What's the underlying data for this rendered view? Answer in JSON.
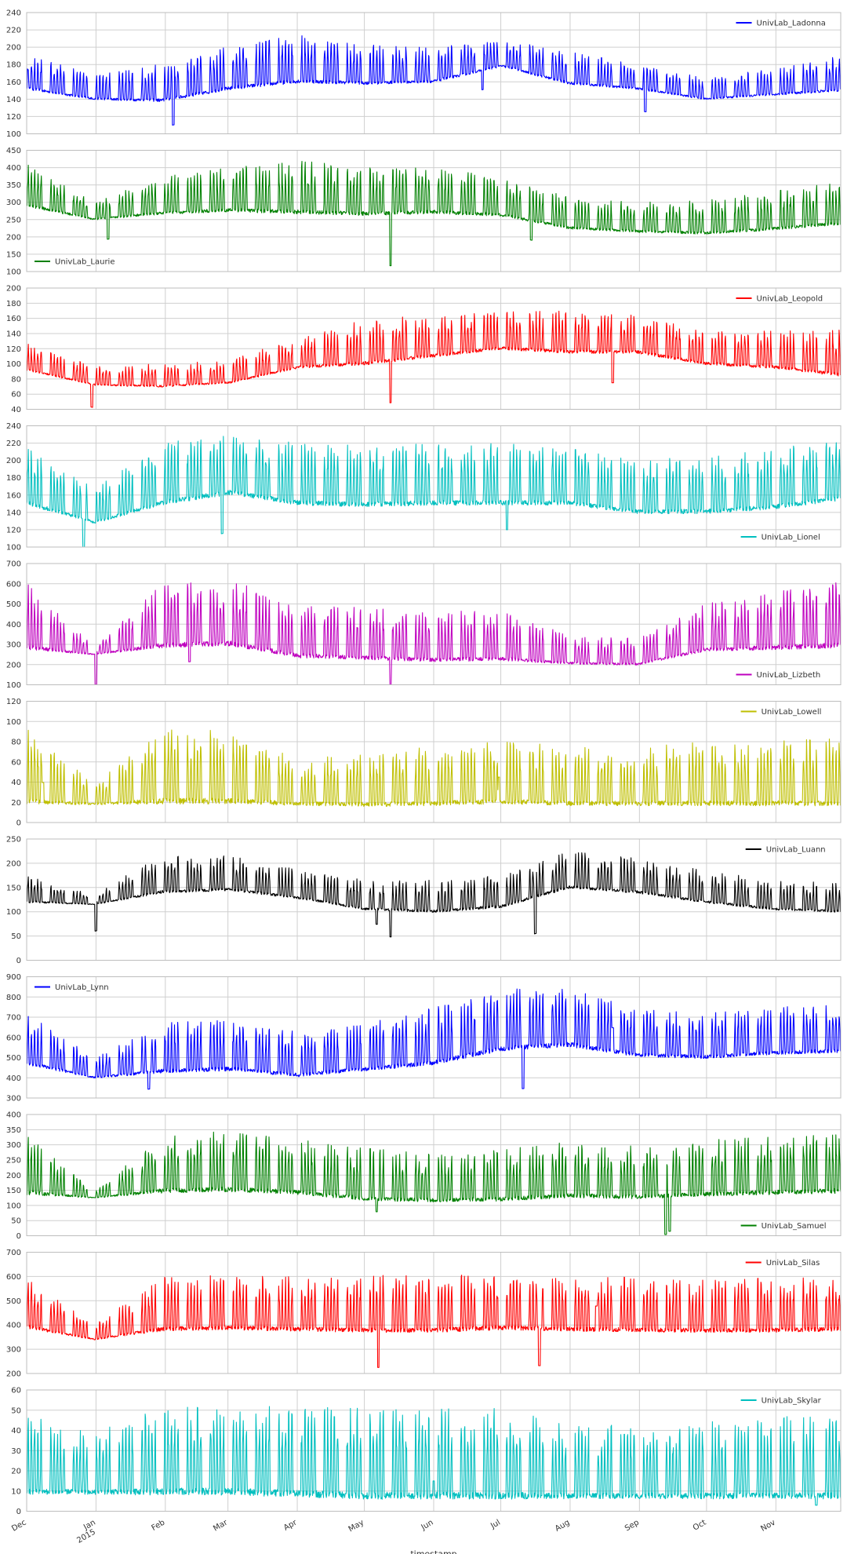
{
  "chart_data": [
    {
      "type": "line",
      "series": [
        {
          "name": "UnivLab_Ladonna",
          "color": "#0000ff"
        }
      ],
      "ylim": [
        100,
        240
      ],
      "yticks": [
        "100",
        "120",
        "140",
        "160",
        "180",
        "200",
        "220",
        "240"
      ],
      "legend": "top-right",
      "profile": {
        "base": [
          152,
          140,
          138,
          152,
          160,
          158,
          160,
          178,
          158,
          152,
          140,
          145,
          150
        ],
        "amp": [
          40,
          28,
          45,
          50,
          55,
          45,
          40,
          30,
          38,
          28,
          25,
          30,
          40
        ],
        "spikes": [
          [
            0.18,
            -30
          ],
          [
            0.56,
            -22
          ],
          [
            0.76,
            -25
          ]
        ]
      }
    },
    {
      "type": "line",
      "series": [
        {
          "name": "UnivLab_Laurie",
          "color": "#008000"
        }
      ],
      "ylim": [
        100,
        450
      ],
      "yticks": [
        "100",
        "150",
        "200",
        "250",
        "300",
        "350",
        "400",
        "450"
      ],
      "legend": "bottom-left",
      "profile": {
        "base": [
          290,
          250,
          268,
          275,
          270,
          265,
          270,
          262,
          225,
          215,
          210,
          222,
          238
        ],
        "amp": [
          120,
          50,
          110,
          130,
          150,
          140,
          130,
          110,
          90,
          85,
          95,
          110,
          120
        ],
        "spikes": [
          [
            0.447,
            -150
          ],
          [
            0.1,
            -60
          ],
          [
            0.62,
            -55
          ]
        ]
      }
    },
    {
      "type": "line",
      "series": [
        {
          "name": "UnivLab_Leopold",
          "color": "#ff0000"
        }
      ],
      "ylim": [
        40,
        200
      ],
      "yticks": [
        "40",
        "60",
        "80",
        "100",
        "120",
        "140",
        "160",
        "180",
        "200"
      ],
      "legend": "top-right",
      "profile": {
        "base": [
          92,
          72,
          70,
          75,
          95,
          100,
          110,
          120,
          115,
          115,
          100,
          95,
          85
        ],
        "amp": [
          35,
          25,
          30,
          30,
          40,
          60,
          55,
          50,
          55,
          50,
          45,
          50,
          60
        ],
        "spikes": [
          [
            0.447,
            -55
          ],
          [
            0.08,
            -30
          ],
          [
            0.72,
            -40
          ]
        ]
      }
    },
    {
      "type": "line",
      "series": [
        {
          "name": "UnivLab_Lionel",
          "color": "#00bfbf"
        }
      ],
      "ylim": [
        100,
        240
      ],
      "yticks": [
        "100",
        "120",
        "140",
        "160",
        "180",
        "200",
        "220",
        "240"
      ],
      "legend": "bottom-right",
      "profile": {
        "base": [
          150,
          128,
          150,
          162,
          150,
          148,
          150,
          150,
          150,
          140,
          140,
          145,
          155
        ],
        "amp": [
          65,
          40,
          70,
          70,
          70,
          70,
          70,
          70,
          65,
          60,
          65,
          70,
          70
        ],
        "spikes": [
          [
            0.07,
            -50
          ],
          [
            0.24,
            -45
          ],
          [
            0.59,
            -30
          ]
        ]
      }
    },
    {
      "type": "line",
      "series": [
        {
          "name": "UnivLab_Lizbeth",
          "color": "#bf00bf"
        }
      ],
      "ylim": [
        100,
        700
      ],
      "yticks": [
        "100",
        "200",
        "300",
        "400",
        "500",
        "600",
        "700"
      ],
      "legend": "bottom-right",
      "profile": {
        "base": [
          280,
          250,
          290,
          300,
          240,
          230,
          220,
          225,
          205,
          200,
          270,
          280,
          290
        ],
        "amp": [
          330,
          40,
          310,
          320,
          260,
          250,
          250,
          240,
          140,
          130,
          230,
          280,
          320
        ],
        "spikes": [
          [
            0.085,
            -150
          ],
          [
            0.447,
            -130
          ],
          [
            0.2,
            -80
          ]
        ]
      }
    },
    {
      "type": "line",
      "series": [
        {
          "name": "UnivLab_Lowell",
          "color": "#bfbf00"
        }
      ],
      "ylim": [
        0,
        120
      ],
      "yticks": [
        "0",
        "20",
        "40",
        "60",
        "80",
        "100",
        "120"
      ],
      "legend": "top-right",
      "profile": {
        "base": [
          20,
          18,
          20,
          20,
          18,
          17,
          18,
          20,
          18,
          18,
          18,
          18,
          18
        ],
        "amp": [
          75,
          20,
          75,
          72,
          45,
          55,
          58,
          60,
          58,
          58,
          62,
          65,
          65
        ],
        "spikes": [
          [
            0.58,
            25
          ],
          [
            0.02,
            20
          ]
        ]
      }
    },
    {
      "type": "line",
      "series": [
        {
          "name": "UnivLab_Luann",
          "color": "#000000"
        }
      ],
      "ylim": [
        0,
        250
      ],
      "yticks": [
        "0",
        "50",
        "100",
        "150",
        "200",
        "250"
      ],
      "legend": "top-right",
      "profile": {
        "base": [
          120,
          115,
          140,
          145,
          128,
          105,
          100,
          110,
          150,
          140,
          120,
          105,
          100
        ],
        "amp": [
          55,
          20,
          80,
          70,
          60,
          60,
          65,
          70,
          75,
          70,
          65,
          60,
          60
        ],
        "spikes": [
          [
            0.085,
            -55
          ],
          [
            0.447,
            -55
          ],
          [
            0.625,
            -75
          ],
          [
            0.43,
            -30
          ]
        ]
      }
    },
    {
      "type": "line",
      "series": [
        {
          "name": "UnivLab_Lynn",
          "color": "#0000ff"
        }
      ],
      "ylim": [
        300,
        900
      ],
      "yticks": [
        "300",
        "400",
        "500",
        "600",
        "700",
        "800",
        "900"
      ],
      "legend": "top-left",
      "profile": {
        "base": [
          470,
          400,
          430,
          440,
          410,
          440,
          470,
          540,
          560,
          510,
          500,
          520,
          530
        ],
        "amp": [
          250,
          100,
          250,
          250,
          220,
          230,
          280,
          300,
          300,
          230,
          220,
          230,
          230
        ],
        "spikes": [
          [
            0.61,
            -200
          ],
          [
            0.15,
            -80
          ],
          [
            0.72,
            120
          ]
        ]
      }
    },
    {
      "type": "line",
      "series": [
        {
          "name": "UnivLab_Samuel",
          "color": "#008000"
        }
      ],
      "ylim": [
        0,
        400
      ],
      "yticks": [
        "0",
        "50",
        "100",
        "150",
        "200",
        "250",
        "300",
        "350",
        "400"
      ],
      "legend": "bottom-right",
      "profile": {
        "base": [
          140,
          125,
          145,
          150,
          140,
          120,
          115,
          118,
          130,
          125,
          135,
          140,
          145
        ],
        "amp": [
          200,
          20,
          190,
          200,
          180,
          170,
          160,
          170,
          180,
          170,
          180,
          190,
          200
        ],
        "spikes": [
          [
            0.785,
            -125
          ],
          [
            0.79,
            -115
          ],
          [
            0.43,
            -40
          ]
        ]
      }
    },
    {
      "type": "line",
      "series": [
        {
          "name": "UnivLab_Silas",
          "color": "#ff0000"
        }
      ],
      "ylim": [
        200,
        700
      ],
      "yticks": [
        "200",
        "300",
        "400",
        "500",
        "600",
        "700"
      ],
      "legend": "top-right",
      "profile": {
        "base": [
          390,
          340,
          380,
          385,
          380,
          375,
          375,
          385,
          380,
          375,
          375,
          375,
          380
        ],
        "amp": [
          200,
          60,
          220,
          220,
          220,
          230,
          230,
          230,
          230,
          220,
          210,
          220,
          220
        ],
        "spikes": [
          [
            0.432,
            -150
          ],
          [
            0.63,
            -150
          ],
          [
            0.7,
            100
          ]
        ]
      }
    },
    {
      "type": "line",
      "series": [
        {
          "name": "UnivLab_Skylar",
          "color": "#00bfbf"
        }
      ],
      "ylim": [
        0,
        60
      ],
      "yticks": [
        "0",
        "10",
        "20",
        "30",
        "40",
        "50",
        "60"
      ],
      "legend": "top-right",
      "profile": {
        "base": [
          9,
          9,
          9,
          9,
          8,
          7,
          7,
          7,
          7,
          7,
          7,
          7,
          7
        ],
        "amp": [
          40,
          30,
          44,
          44,
          44,
          44,
          44,
          44,
          36,
          36,
          38,
          40,
          40
        ],
        "spikes": [
          [
            0.5,
            8
          ],
          [
            0.97,
            -4
          ]
        ]
      }
    }
  ],
  "xaxis": {
    "label": "timestamp",
    "ticks": [
      {
        "label": "Dec",
        "sub": ""
      },
      {
        "label": "Jan",
        "sub": "2015"
      },
      {
        "label": "Feb",
        "sub": ""
      },
      {
        "label": "Mar",
        "sub": ""
      },
      {
        "label": "Apr",
        "sub": ""
      },
      {
        "label": "May",
        "sub": ""
      },
      {
        "label": "Jun",
        "sub": ""
      },
      {
        "label": "Jul",
        "sub": ""
      },
      {
        "label": "Aug",
        "sub": ""
      },
      {
        "label": "Sep",
        "sub": ""
      },
      {
        "label": "Oct",
        "sub": ""
      },
      {
        "label": "Nov",
        "sub": ""
      }
    ],
    "tick_dates": [
      "2014-12-01",
      "2015-01-01",
      "2015-02-01",
      "2015-03-01",
      "2015-04-01",
      "2015-05-01",
      "2015-06-01",
      "2015-07-01",
      "2015-08-01",
      "2015-09-01",
      "2015-10-01",
      "2015-11-01"
    ],
    "range": [
      "2014-12-01",
      "2015-11-30"
    ]
  }
}
